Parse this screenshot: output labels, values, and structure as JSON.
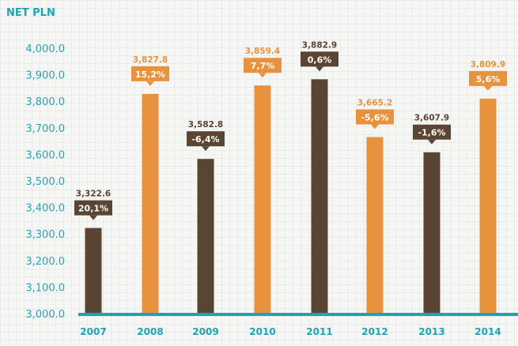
{
  "chart_data": {
    "type": "bar",
    "title": "NET PLN",
    "categories": [
      "2007",
      "2008",
      "2009",
      "2010",
      "2011",
      "2012",
      "2013",
      "2014"
    ],
    "values": [
      3322.6,
      3827.8,
      3582.8,
      3859.4,
      3882.9,
      3665.2,
      3607.9,
      3809.9
    ],
    "value_labels": [
      "3,322.6",
      "3,827.8",
      "3,582.8",
      "3,859.4",
      "3,882.9",
      "3,665.2",
      "3,607.9",
      "3,809.9"
    ],
    "change_labels": [
      "20,1%",
      "15,2%",
      "-6,4%",
      "7,7%",
      "0,6%",
      "-5,6%",
      "-1,6%",
      "5,6%"
    ],
    "ylim": [
      3000,
      4000
    ],
    "yticks": [
      "3,000.0",
      "3,100.0",
      "3,200.0",
      "3,300.0",
      "3,400.0",
      "3,500.0",
      "3,600.0",
      "3,700.0",
      "3,800.0",
      "3,900.0",
      "4,000.0"
    ],
    "grid": true,
    "colors": {
      "odd": "#5a4534",
      "even": "#e8923d",
      "axis": "#1fa3b3"
    }
  }
}
